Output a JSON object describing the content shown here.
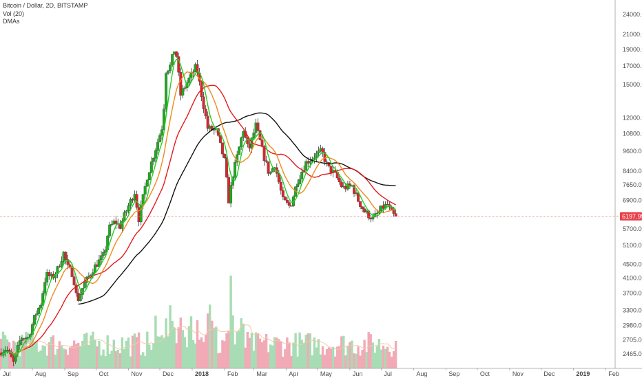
{
  "header": {
    "symbol_line": "Bitcoin / Dollar, 2D, BITSTAMP",
    "volume_line": "Vol (20)",
    "ma_line": "DMAs"
  },
  "colors": {
    "up": "#22a822",
    "down": "#d9262c",
    "vol_up": "#a8dcb4",
    "vol_down": "#f1aab6",
    "ma_green": "#22d022",
    "ma_orange": "#ef8a1c",
    "ma_red": "#e21b1b",
    "ma_black": "#111111",
    "vol_ma": "#f4c9a8",
    "last_price_line": "#f08080",
    "last_price_tag": "#e8414a"
  },
  "chart_data": {
    "type": "line",
    "title": "Bitcoin / Dollar, 2D, BITSTAMP",
    "xlabel": "",
    "ylabel": "",
    "y_scale": "log",
    "ylim": [
      2320,
      25500
    ],
    "x_range": [
      "2017-07-01",
      "2019-02-10"
    ],
    "grid": false,
    "y_ticks": [
      2465,
      2705,
      2980,
      3300,
      3700,
      4100,
      4500,
      5100,
      5700,
      6900,
      7650,
      8400,
      9600,
      10800,
      12000,
      15000,
      17000,
      19000,
      21000,
      24000
    ],
    "y_tick_labels": [
      "2465.00",
      "2705.00",
      "2980.00",
      "3300.00",
      "3700.00",
      "4100.00",
      "4500.00",
      "5100.00",
      "5700.00",
      "6900.00",
      "7650.00",
      "8400.00",
      "9600.00",
      "10800.00",
      "12000.00",
      "15000.00",
      "17000.00",
      "19000.00",
      "21000.00",
      "24000.00"
    ],
    "x_ticks": [
      {
        "label": "Jul",
        "date": "2017-07-01"
      },
      {
        "label": "Aug",
        "date": "2017-08-01"
      },
      {
        "label": "Sep",
        "date": "2017-09-01"
      },
      {
        "label": "Oct",
        "date": "2017-10-01"
      },
      {
        "label": "Nov",
        "date": "2017-11-01"
      },
      {
        "label": "Dec",
        "date": "2017-12-01"
      },
      {
        "label": "2018",
        "date": "2018-01-01"
      },
      {
        "label": "Feb",
        "date": "2018-02-01"
      },
      {
        "label": "Mar",
        "date": "2018-03-01"
      },
      {
        "label": "Apr",
        "date": "2018-04-01"
      },
      {
        "label": "May",
        "date": "2018-05-01"
      },
      {
        "label": "Jun",
        "date": "2018-06-01"
      },
      {
        "label": "Jul",
        "date": "2018-07-01"
      },
      {
        "label": "Aug",
        "date": "2018-08-01"
      },
      {
        "label": "Sep",
        "date": "2018-09-01"
      },
      {
        "label": "Oct",
        "date": "2018-10-01"
      },
      {
        "label": "Nov",
        "date": "2018-11-01"
      },
      {
        "label": "Dec",
        "date": "2018-12-01"
      },
      {
        "label": "2019",
        "date": "2019-01-01"
      },
      {
        "label": "Feb",
        "date": "2019-02-01"
      }
    ],
    "last_price": 6197.99,
    "last_price_label": "6197.99",
    "price_anchors": [
      [
        "2017-07-01",
        2480
      ],
      [
        "2017-07-08",
        2560
      ],
      [
        "2017-07-15",
        2320
      ],
      [
        "2017-07-22",
        2750
      ],
      [
        "2017-07-29",
        2750
      ],
      [
        "2017-08-05",
        3200
      ],
      [
        "2017-08-10",
        3450
      ],
      [
        "2017-08-15",
        4200
      ],
      [
        "2017-08-21",
        4100
      ],
      [
        "2017-08-26",
        4350
      ],
      [
        "2017-09-01",
        4850
      ],
      [
        "2017-09-05",
        4400
      ],
      [
        "2017-09-10",
        4200
      ],
      [
        "2017-09-14",
        3500
      ],
      [
        "2017-09-20",
        3900
      ],
      [
        "2017-09-30",
        4400
      ],
      [
        "2017-10-10",
        4800
      ],
      [
        "2017-10-14",
        5700
      ],
      [
        "2017-10-20",
        6000
      ],
      [
        "2017-10-25",
        5800
      ],
      [
        "2017-10-31",
        6450
      ],
      [
        "2017-11-08",
        7300
      ],
      [
        "2017-11-12",
        6100
      ],
      [
        "2017-11-20",
        8100
      ],
      [
        "2017-11-29",
        10000
      ],
      [
        "2017-12-05",
        11500
      ],
      [
        "2017-12-08",
        16500
      ],
      [
        "2017-12-12",
        17000
      ],
      [
        "2017-12-17",
        19400
      ],
      [
        "2017-12-22",
        14000
      ],
      [
        "2017-12-27",
        15000
      ],
      [
        "2018-01-06",
        17000
      ],
      [
        "2018-01-12",
        13500
      ],
      [
        "2018-01-17",
        11200
      ],
      [
        "2018-01-25",
        11000
      ],
      [
        "2018-02-02",
        9000
      ],
      [
        "2018-02-06",
        6900
      ],
      [
        "2018-02-10",
        8200
      ],
      [
        "2018-02-20",
        11100
      ],
      [
        "2018-02-25",
        9600
      ],
      [
        "2018-03-04",
        11400
      ],
      [
        "2018-03-12",
        9200
      ],
      [
        "2018-03-17",
        8200
      ],
      [
        "2018-03-22",
        8800
      ],
      [
        "2018-03-30",
        6900
      ],
      [
        "2018-04-06",
        6600
      ],
      [
        "2018-04-13",
        7900
      ],
      [
        "2018-04-21",
        8900
      ],
      [
        "2018-04-29",
        9300
      ],
      [
        "2018-05-06",
        9600
      ],
      [
        "2018-05-12",
        8600
      ],
      [
        "2018-05-19",
        8200
      ],
      [
        "2018-05-26",
        7500
      ],
      [
        "2018-06-04",
        7600
      ],
      [
        "2018-06-10",
        6900
      ],
      [
        "2018-06-16",
        6400
      ],
      [
        "2018-06-24",
        6100
      ],
      [
        "2018-06-30",
        6400
      ],
      [
        "2018-07-04",
        6600
      ],
      [
        "2018-07-08",
        6700
      ],
      [
        "2018-07-11",
        6400
      ],
      [
        "2018-07-15",
        6198
      ]
    ],
    "series": [
      {
        "role": "price candles",
        "type": "candlestick",
        "interval": "2D",
        "derived_from": "price_anchors"
      },
      {
        "role": "volume bars",
        "type": "bar",
        "ylim": [
          0,
          8
        ]
      },
      {
        "role": "short moving average",
        "color": "#22d022",
        "window": 5
      },
      {
        "role": "medium moving average",
        "color": "#ef8a1c",
        "window": 11
      },
      {
        "role": "long moving average",
        "color": "#e21b1b",
        "window": 25
      },
      {
        "role": "longest moving average",
        "color": "#111111",
        "window": 50
      }
    ],
    "ma_black_start_date": "2017-09-13",
    "volume_peak": {
      "date": "2018-02-06",
      "value": 8
    }
  }
}
